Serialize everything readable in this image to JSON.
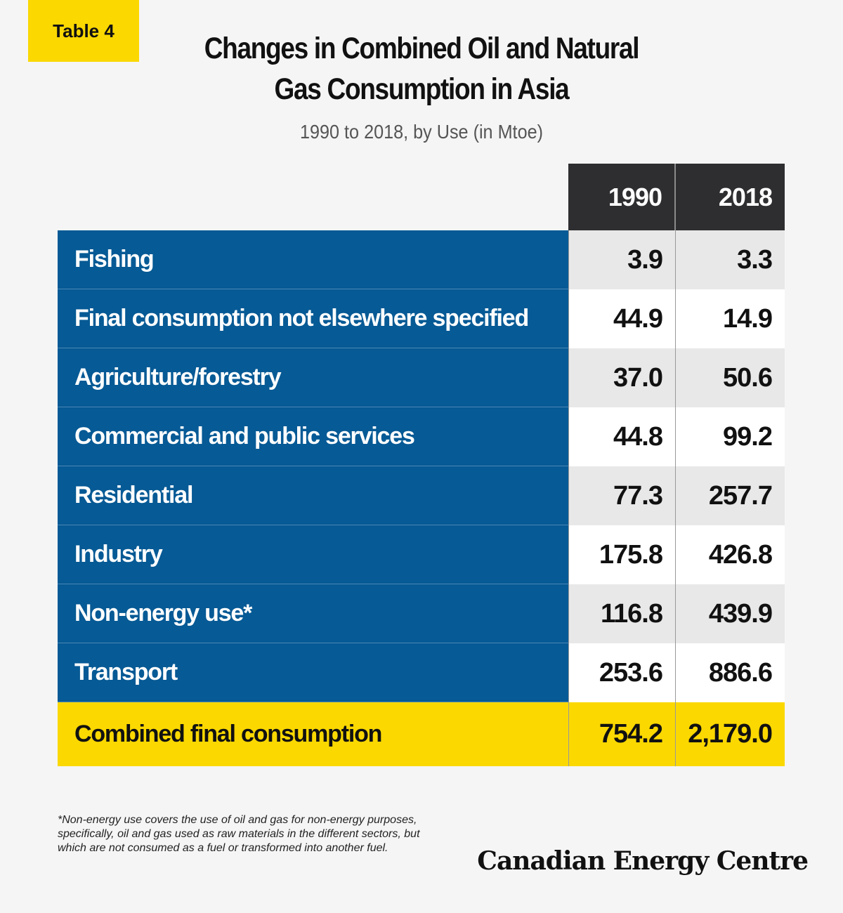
{
  "tag": "Table 4",
  "title_line1": "Changes in Combined Oil and Natural",
  "title_line2": "Gas Consumption in Asia",
  "subtitle": "1990 to 2018, by Use (in Mtoe)",
  "colors": {
    "accent_yellow": "#fbd800",
    "label_blue": "#065a95",
    "header_dark": "#2e2e30"
  },
  "chart_data": {
    "type": "table",
    "title": "Changes in Combined Oil and Natural Gas Consumption in Asia",
    "subtitle": "1990 to 2018, by Use (in Mtoe)",
    "columns": [
      "1990",
      "2018"
    ],
    "rows": [
      {
        "label": "Fishing",
        "v1990": "3.9",
        "v2018": "3.3"
      },
      {
        "label": "Final consumption not elsewhere specified",
        "v1990": "44.9",
        "v2018": "14.9"
      },
      {
        "label": "Agriculture/forestry",
        "v1990": "37.0",
        "v2018": "50.6"
      },
      {
        "label": "Commercial and public services",
        "v1990": "44.8",
        "v2018": "99.2"
      },
      {
        "label": "Residential",
        "v1990": "77.3",
        "v2018": "257.7"
      },
      {
        "label": "Industry",
        "v1990": "175.8",
        "v2018": "426.8"
      },
      {
        "label": "Non-energy use*",
        "v1990": "116.8",
        "v2018": "439.9"
      },
      {
        "label": "Transport",
        "v1990": "253.6",
        "v2018": "886.6"
      }
    ],
    "total": {
      "label": "Combined final consumption",
      "v1990": "754.2",
      "v2018": "2,179.0"
    }
  },
  "footnote": "*Non-energy use covers the use of oil and gas for non-energy purposes, specifically, oil and gas used as raw materials in the different sectors, but which are not consumed as a fuel or transformed into another fuel.",
  "brand": "Canadian Energy Centre"
}
